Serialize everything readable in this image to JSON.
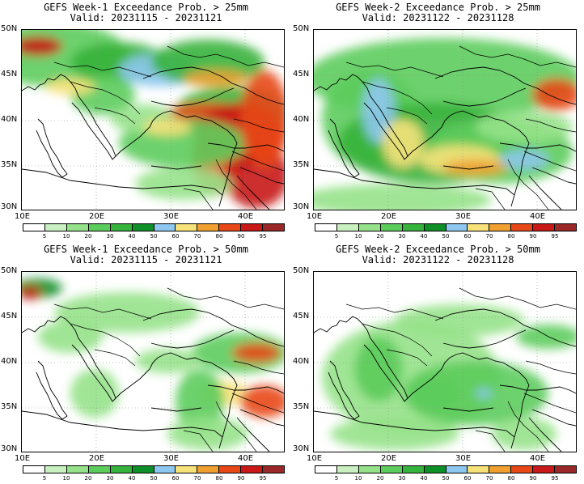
{
  "panels": [
    {
      "line1": "GEFS Week-1 Exceedance Prob. > 25mm",
      "line2": "Valid: 20231115 - 20231121"
    },
    {
      "line1": "GEFS Week-2 Exceedance Prob. > 25mm",
      "line2": "Valid: 20231122 - 20231128"
    },
    {
      "line1": "GEFS Week-1 Exceedance Prob. > 50mm",
      "line2": "Valid: 20231115 - 20231121"
    },
    {
      "line1": "GEFS Week-2 Exceedance Prob. > 50mm",
      "line2": "Valid: 20231122 - 20231128"
    }
  ],
  "lat_labels": [
    "50N",
    "45N",
    "40N",
    "35N",
    "30N"
  ],
  "lon_labels": [
    "10E",
    "20E",
    "30E",
    "40E"
  ],
  "colorbar": {
    "labels": [
      "5",
      "10",
      "20",
      "30",
      "40",
      "50",
      "60",
      "70",
      "80",
      "90",
      "95"
    ],
    "colors": [
      "#ffffff",
      "#c8f0c0",
      "#96e28a",
      "#5ccc5c",
      "#36b33c",
      "#0f8f28",
      "#8ec8f0",
      "#f7e27a",
      "#f0a030",
      "#e84818",
      "#c81818",
      "#9a2828"
    ]
  }
}
